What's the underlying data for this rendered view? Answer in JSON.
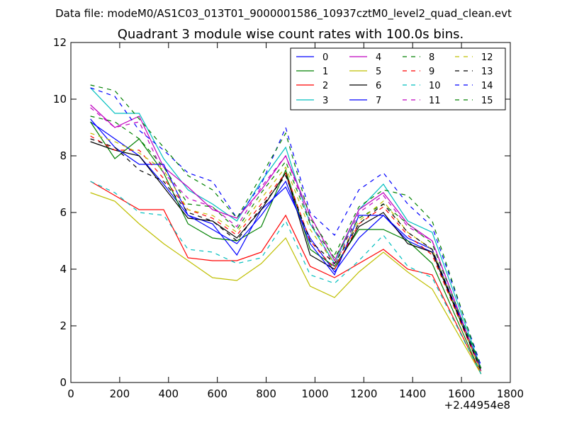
{
  "chart_data": {
    "type": "line",
    "suptitle": "Data file: modeM0/AS1C03_013T01_9000001586_10937cztM0_level2_quad_clean.evt",
    "title": "Quadrant 3 module wise count rates with 100.0s bins.",
    "xlabel": "",
    "ylabel": "",
    "x_offset_label": "+2.44954e8",
    "xlim": [
      0,
      1800
    ],
    "ylim": [
      0,
      12
    ],
    "x_ticks": [
      0,
      200,
      400,
      600,
      800,
      1000,
      1200,
      1400,
      1600,
      1800
    ],
    "y_ticks": [
      0,
      2,
      4,
      6,
      8,
      10,
      12
    ],
    "grid": false,
    "legend_position": "top-right",
    "legend_columns": 4,
    "x": [
      80,
      180,
      280,
      380,
      480,
      580,
      680,
      780,
      880,
      980,
      1080,
      1180,
      1280,
      1380,
      1480,
      1680
    ],
    "series": [
      {
        "name": "0",
        "color": "#0000ff",
        "dash": "solid",
        "values": [
          9.2,
          8.6,
          8.0,
          7.0,
          5.9,
          5.6,
          4.5,
          6.1,
          6.9,
          5.1,
          3.9,
          5.1,
          5.9,
          5.0,
          4.6,
          0.5
        ]
      },
      {
        "name": "1",
        "color": "#008000",
        "dash": "solid",
        "values": [
          9.2,
          7.9,
          8.6,
          7.4,
          5.6,
          5.1,
          5.0,
          5.5,
          7.5,
          4.7,
          4.1,
          5.4,
          5.4,
          5.0,
          4.2,
          0.3
        ]
      },
      {
        "name": "2",
        "color": "#ff0000",
        "dash": "solid",
        "values": [
          7.1,
          6.6,
          6.1,
          6.1,
          4.4,
          4.3,
          4.3,
          4.6,
          5.9,
          4.1,
          3.7,
          4.2,
          4.7,
          4.0,
          3.8,
          0.3
        ]
      },
      {
        "name": "3",
        "color": "#00bfbf",
        "dash": "solid",
        "values": [
          10.4,
          9.5,
          9.5,
          7.9,
          6.8,
          6.3,
          5.7,
          7.1,
          8.3,
          5.6,
          4.2,
          6.1,
          7.0,
          5.7,
          5.3,
          0.5
        ]
      },
      {
        "name": "4",
        "color": "#bf00bf",
        "dash": "solid",
        "values": [
          9.8,
          9.0,
          9.4,
          7.6,
          6.9,
          6.1,
          5.8,
          6.8,
          8.0,
          5.9,
          4.3,
          6.1,
          6.7,
          5.6,
          5.0,
          0.4
        ]
      },
      {
        "name": "5",
        "color": "#bfbf00",
        "dash": "solid",
        "values": [
          6.7,
          6.4,
          5.6,
          4.9,
          4.3,
          3.7,
          3.6,
          4.2,
          5.1,
          3.4,
          3.0,
          3.9,
          4.6,
          3.9,
          3.3,
          0.3
        ]
      },
      {
        "name": "6",
        "color": "#000000",
        "dash": "solid",
        "values": [
          8.5,
          8.2,
          8.0,
          6.9,
          5.8,
          5.7,
          5.1,
          6.1,
          7.4,
          4.5,
          4.0,
          5.5,
          6.0,
          4.9,
          4.6,
          0.4
        ]
      },
      {
        "name": "7",
        "color": "#0000ff",
        "dash": "solid",
        "values": [
          9.3,
          8.3,
          7.7,
          7.7,
          5.9,
          5.4,
          4.9,
          5.9,
          7.1,
          4.9,
          3.8,
          5.9,
          5.9,
          5.1,
          4.7,
          0.5
        ]
      },
      {
        "name": "8",
        "color": "#008000",
        "dash": "dashed",
        "values": [
          9.4,
          9.2,
          8.6,
          7.6,
          6.3,
          6.2,
          5.4,
          6.7,
          7.8,
          5.6,
          4.4,
          5.8,
          6.3,
          5.6,
          4.9,
          0.5
        ]
      },
      {
        "name": "9",
        "color": "#ff0000",
        "dash": "dashed",
        "values": [
          8.7,
          8.2,
          8.2,
          7.2,
          6.1,
          5.8,
          5.2,
          6.3,
          7.4,
          5.0,
          4.0,
          5.6,
          6.2,
          5.2,
          4.5,
          0.4
        ]
      },
      {
        "name": "10",
        "color": "#00bfbf",
        "dash": "dashed",
        "values": [
          7.1,
          6.7,
          6.0,
          5.9,
          4.7,
          4.6,
          4.2,
          4.4,
          5.7,
          3.8,
          3.5,
          4.3,
          5.2,
          4.1,
          3.7,
          0.3
        ]
      },
      {
        "name": "11",
        "color": "#bf00bf",
        "dash": "dashed",
        "values": [
          9.7,
          9.0,
          9.2,
          7.4,
          6.5,
          6.2,
          5.5,
          6.9,
          8.0,
          5.7,
          4.1,
          6.0,
          6.6,
          5.5,
          5.0,
          0.4
        ]
      },
      {
        "name": "12",
        "color": "#bfbf00",
        "dash": "dashed",
        "values": [
          8.8,
          8.5,
          8.1,
          7.5,
          6.1,
          5.9,
          5.3,
          6.5,
          7.6,
          5.4,
          4.2,
          5.7,
          6.4,
          5.3,
          4.7,
          0.4
        ]
      },
      {
        "name": "13",
        "color": "#000000",
        "dash": "dashed",
        "values": [
          8.6,
          8.3,
          7.5,
          7.1,
          6.0,
          5.7,
          5.0,
          6.2,
          7.3,
          5.0,
          4.2,
          5.6,
          6.3,
          5.3,
          4.7,
          0.4
        ]
      },
      {
        "name": "14",
        "color": "#0000ff",
        "dash": "dashed",
        "values": [
          10.4,
          10.1,
          8.9,
          8.2,
          7.4,
          7.1,
          5.8,
          7.0,
          9.0,
          6.0,
          5.2,
          6.8,
          7.4,
          6.3,
          5.5,
          0.6
        ]
      },
      {
        "name": "15",
        "color": "#008000",
        "dash": "dashed",
        "values": [
          10.5,
          10.3,
          9.3,
          8.3,
          7.3,
          6.8,
          5.8,
          7.3,
          8.8,
          5.8,
          4.5,
          6.2,
          6.8,
          6.6,
          5.7,
          0.5
        ]
      }
    ]
  }
}
